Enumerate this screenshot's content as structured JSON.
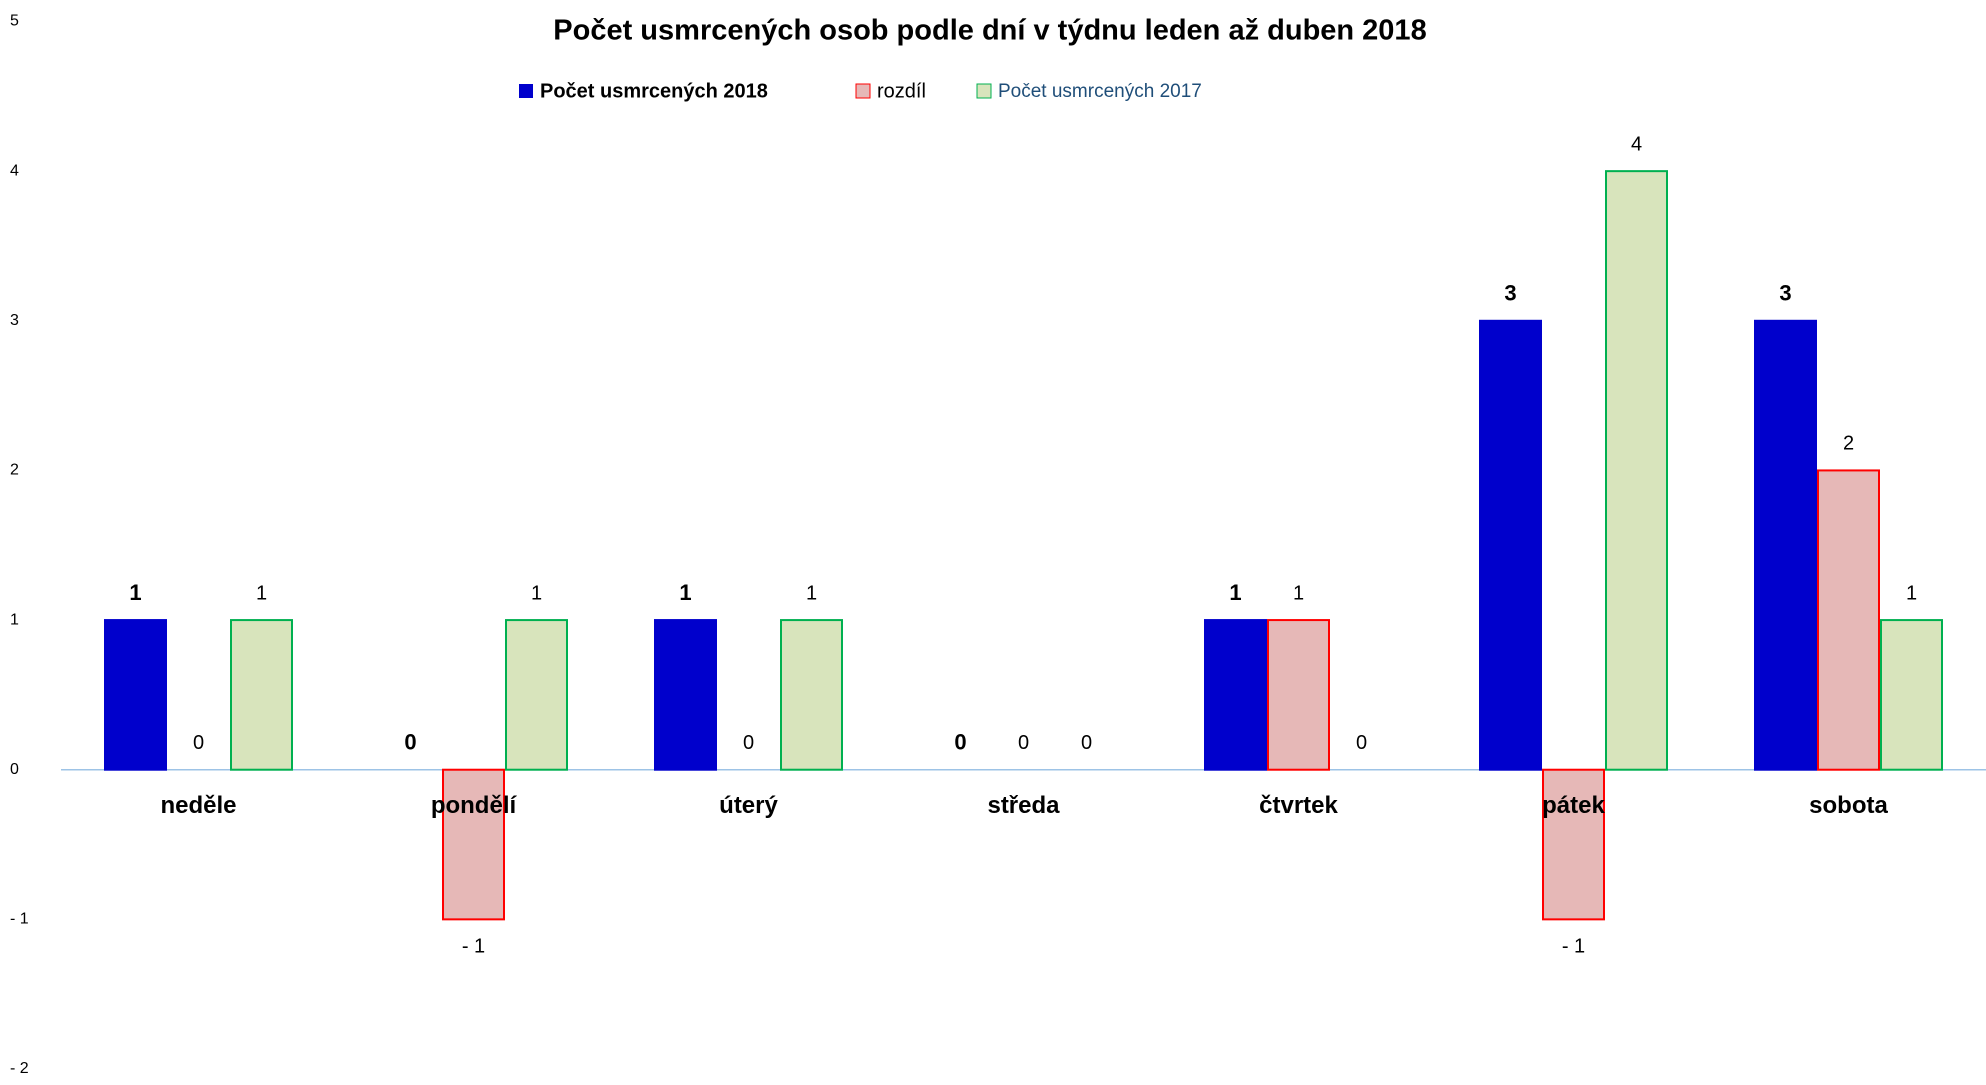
{
  "chart_data": {
    "type": "bar",
    "title": "Počet usmrcených osob podle dní v týdnu leden až duben 2018",
    "categories": [
      "neděle",
      "pondělí",
      "úterý",
      "středa",
      "čtvrtek",
      "pátek",
      "sobota"
    ],
    "series": [
      {
        "name": "Počet usmrcených 2018",
        "color": "#0000cc",
        "stroke": "#0000cc",
        "values": [
          1,
          0,
          1,
          0,
          1,
          3,
          3
        ]
      },
      {
        "name": "rozdíl",
        "color": "#e6b8b7",
        "stroke": "#ff0000",
        "values": [
          0,
          -1,
          0,
          0,
          1,
          -1,
          2
        ],
        "value_labels": [
          "0",
          "- 1",
          "0",
          "0",
          "1",
          "- 1",
          "2"
        ]
      },
      {
        "name": "Počet usmrcených 2017",
        "color": "#d8e4bc",
        "stroke": "#00b050",
        "values": [
          1,
          1,
          1,
          0,
          0,
          4,
          1
        ]
      }
    ],
    "ylim": [
      -2,
      5
    ],
    "yticks": [
      {
        "value": -2,
        "label": "- 2"
      },
      {
        "value": -1,
        "label": "- 1"
      },
      0,
      1,
      2,
      3,
      4,
      5
    ]
  }
}
